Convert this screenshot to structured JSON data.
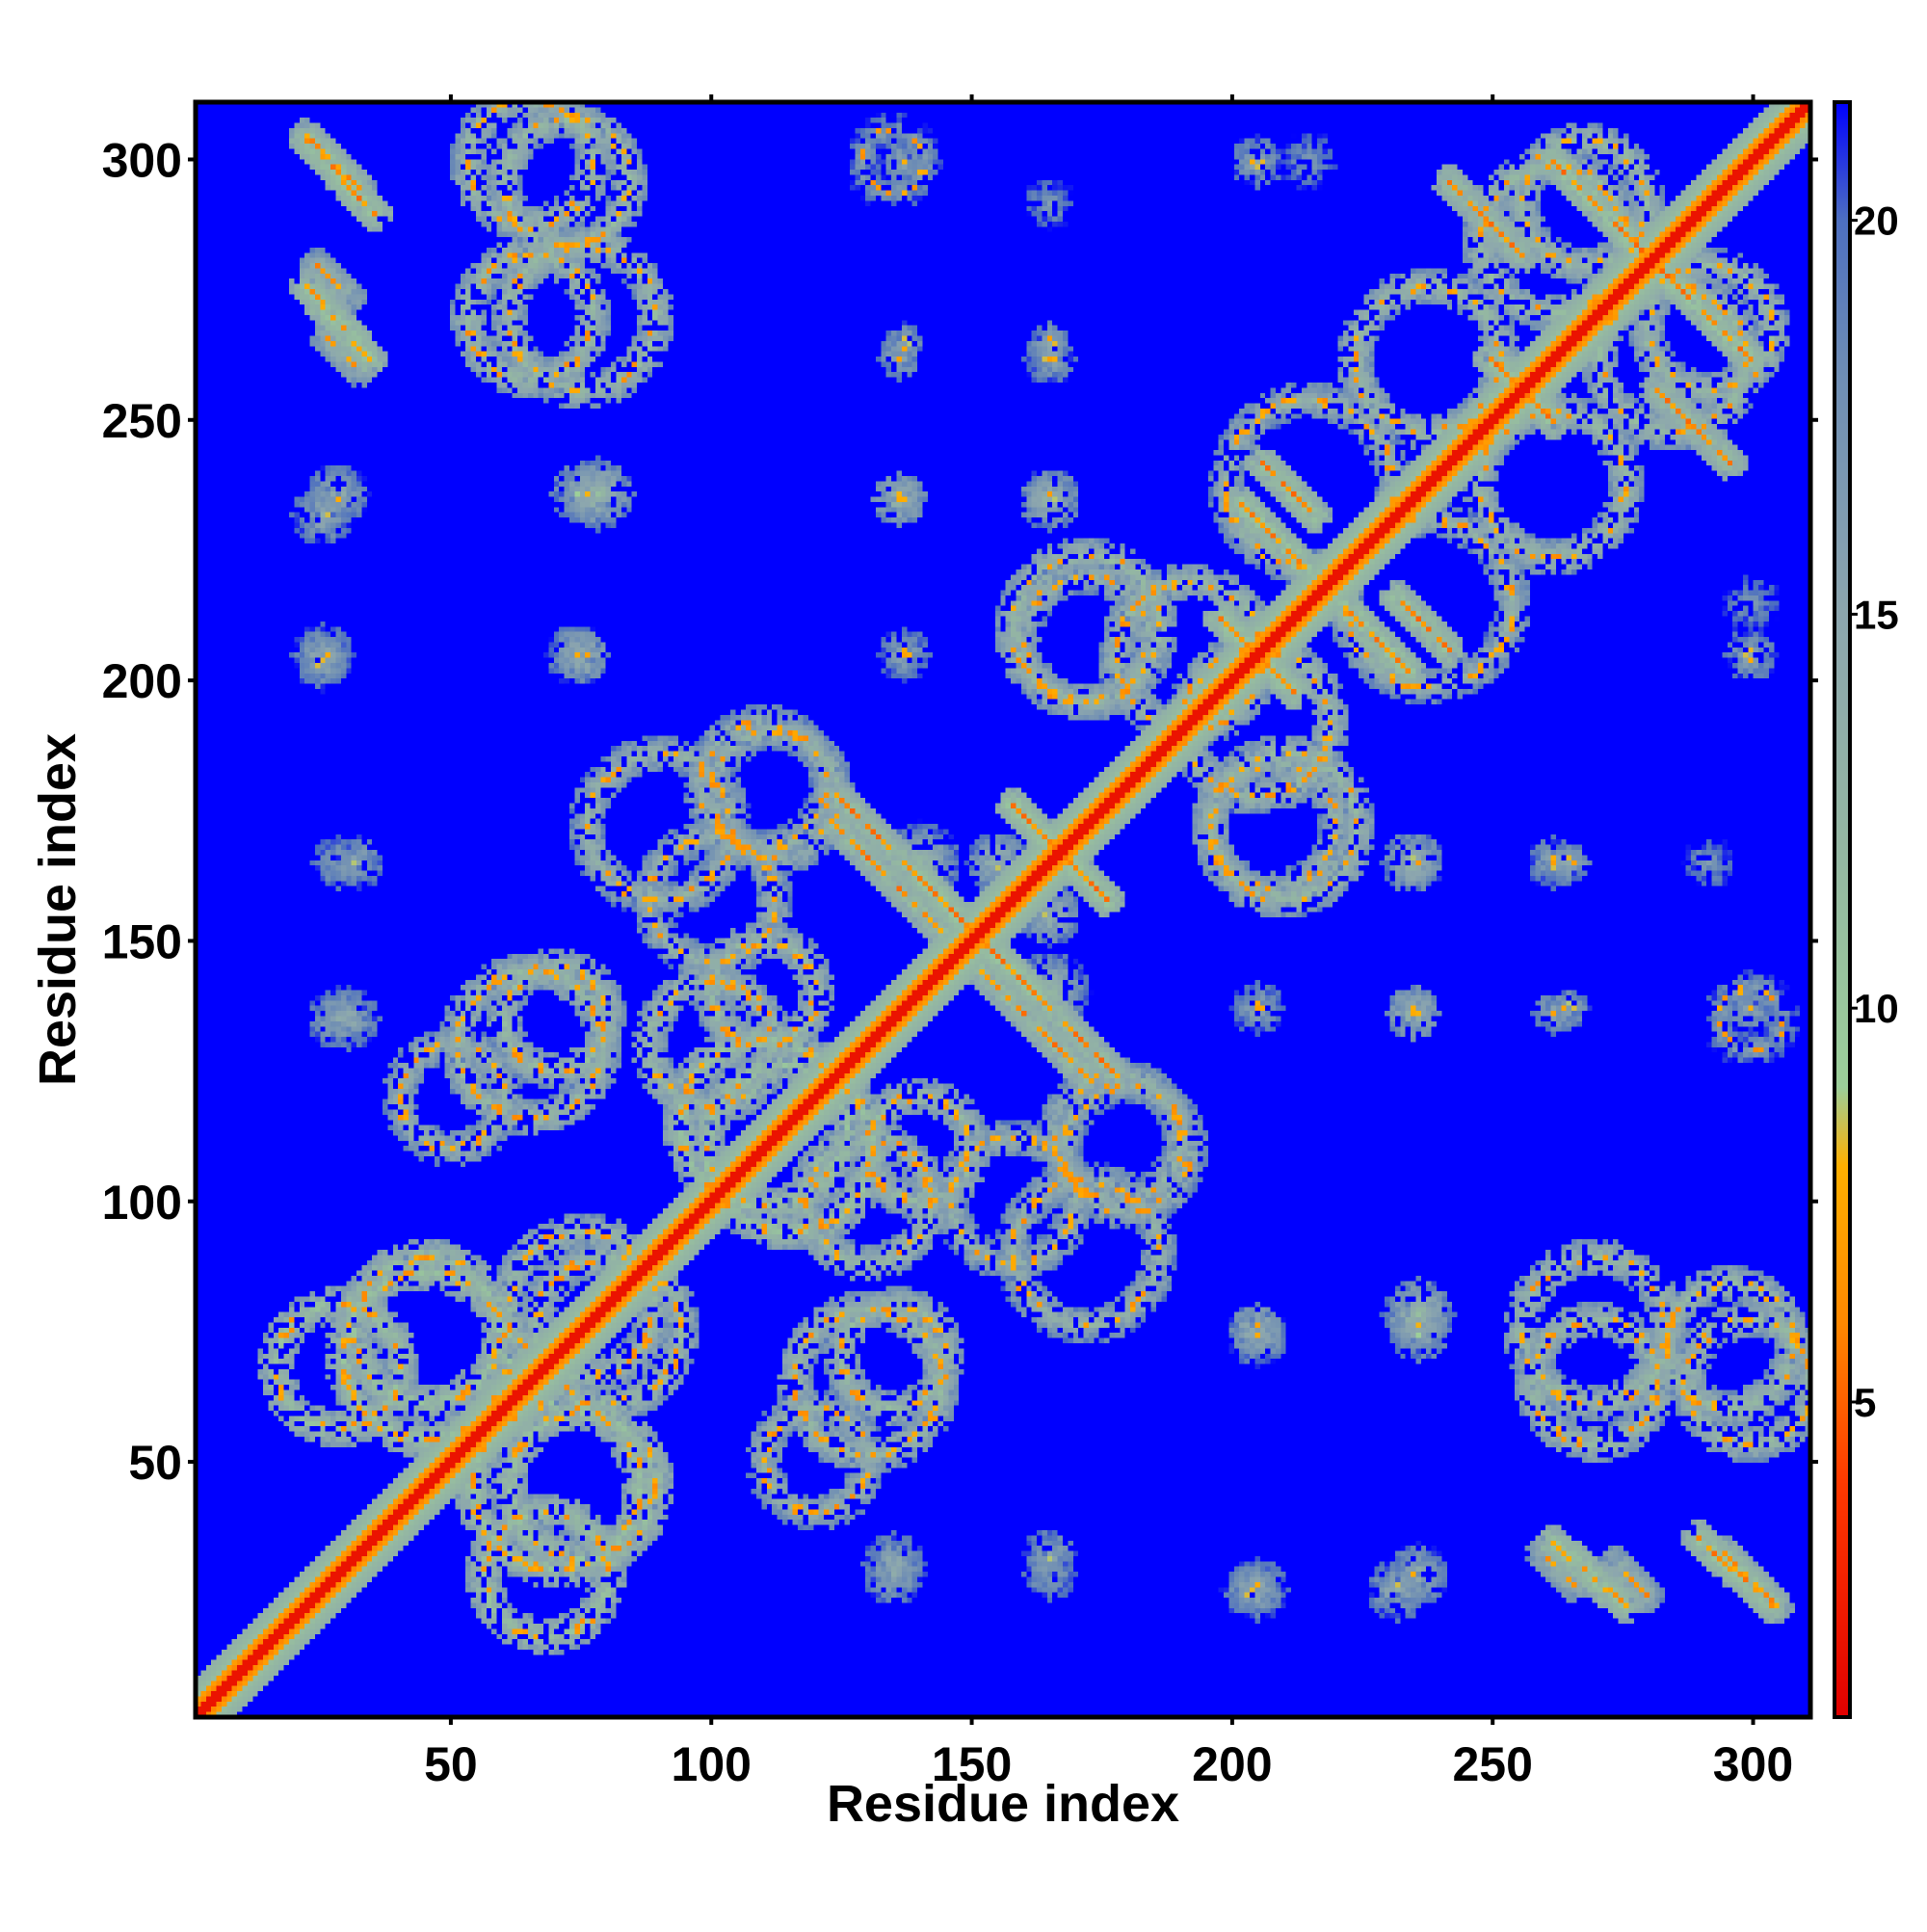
{
  "chart_data": {
    "type": "heatmap",
    "subtype": "residue-residue distance map",
    "xlabel": "Residue index",
    "ylabel": "Residue index",
    "n_residues": 311,
    "xlim": [
      1,
      311
    ],
    "ylim": [
      1,
      311
    ],
    "x_ticks": [
      50,
      100,
      150,
      200,
      250,
      300
    ],
    "y_ticks": [
      50,
      100,
      150,
      200,
      250,
      300
    ],
    "colorbar": {
      "range": [
        1,
        21.5
      ],
      "ticks": [
        5,
        10,
        15,
        20
      ],
      "colors": [
        {
          "value": 1,
          "color": "#e10000"
        },
        {
          "value": 4,
          "color": "#ff3a00"
        },
        {
          "value": 6,
          "color": "#ff8800"
        },
        {
          "value": 8,
          "color": "#ffb000"
        },
        {
          "value": 9,
          "color": "#9ccf9a"
        },
        {
          "value": 12,
          "color": "#94b7a2"
        },
        {
          "value": 15,
          "color": "#8ca6ae"
        },
        {
          "value": 18,
          "color": "#6f8eb4"
        },
        {
          "value": 20,
          "color": "#4d6fc0"
        },
        {
          "value": 21.5,
          "color": "#0000ff"
        }
      ]
    },
    "background_color": "#0000ff",
    "diagonal_band": {
      "from": 1,
      "to": 311,
      "core_distance": 2,
      "shoulder_distance": 9
    },
    "contact_features": [
      {
        "kind": "antiparallel",
        "i": [
          22,
          32
        ],
        "j": [
          305,
          295
        ],
        "distance": 10
      },
      {
        "kind": "antiparallel",
        "i": [
          24,
          30
        ],
        "j": [
          280,
          274
        ],
        "distance": 12
      },
      {
        "kind": "antiparallel",
        "i": [
          26,
          32
        ],
        "j": [
          266,
          260
        ],
        "distance": 12
      },
      {
        "kind": "blob",
        "x": 25,
        "y": 232,
        "radius": 6,
        "distance": 13
      },
      {
        "kind": "blob",
        "x": 25,
        "y": 203,
        "radius": 5,
        "distance": 14
      },
      {
        "kind": "ring",
        "x": 72,
        "y": 296,
        "radius": 12,
        "distance": 11
      },
      {
        "kind": "ring",
        "x": 75,
        "y": 270,
        "radius": 14,
        "distance": 11
      },
      {
        "kind": "blob",
        "x": 78,
        "y": 236,
        "radius": 7,
        "distance": 11
      },
      {
        "kind": "blob",
        "x": 74,
        "y": 205,
        "radius": 6,
        "distance": 13
      },
      {
        "kind": "ring",
        "x": 135,
        "y": 300,
        "radius": 6,
        "distance": 15
      },
      {
        "kind": "blob",
        "x": 136,
        "y": 262,
        "radius": 4,
        "distance": 14
      },
      {
        "kind": "blob",
        "x": 136,
        "y": 235,
        "radius": 5,
        "distance": 12
      },
      {
        "kind": "blob",
        "x": 165,
        "y": 292,
        "radius": 5,
        "distance": 15
      },
      {
        "kind": "blob",
        "x": 165,
        "y": 262,
        "radius": 5,
        "distance": 14
      },
      {
        "kind": "blob",
        "x": 165,
        "y": 235,
        "radius": 6,
        "distance": 12
      },
      {
        "kind": "blob",
        "x": 215,
        "y": 300,
        "radius": 6,
        "distance": 15
      },
      {
        "kind": "ring",
        "x": 262,
        "y": 285,
        "radius": 14,
        "distance": 11
      },
      {
        "kind": "ring",
        "x": 292,
        "y": 268,
        "radius": 12,
        "distance": 11
      },
      {
        "kind": "antiparallel",
        "i": [
          262,
          288
        ],
        "j": [
          300,
          274
        ],
        "distance": 9
      },
      {
        "kind": "antiparallel",
        "i": [
          242,
          256
        ],
        "j": [
          296,
          282
        ],
        "distance": 10
      },
      {
        "kind": "antiparallel",
        "i": [
          250,
          260
        ],
        "j": [
          262,
          252
        ],
        "distance": 9
      },
      {
        "kind": "antiparallel",
        "i": [
          206,
          216
        ],
        "j": [
          242,
          232
        ],
        "distance": 9
      },
      {
        "kind": "antiparallel",
        "i": [
          222,
          234
        ],
        "j": [
          214,
          202
        ],
        "distance": 9
      },
      {
        "kind": "antiparallel",
        "i": [
          198,
          208
        ],
        "j": [
          212,
          202
        ],
        "distance": 9
      },
      {
        "kind": "antiparallel",
        "i": [
          158,
          176
        ],
        "j": [
          176,
          158
        ],
        "distance": 9
      },
      {
        "kind": "antiparallel",
        "i": [
          140,
          162
        ],
        "j": [
          162,
          140
        ],
        "distance": 9
      },
      {
        "kind": "antiparallel",
        "i": [
          124,
          144
        ],
        "j": [
          172,
          152
        ],
        "distance": 10
      },
      {
        "kind": "antiparallel",
        "i": [
          162,
          178
        ],
        "j": [
          140,
          124
        ],
        "distance": 10
      },
      {
        "kind": "ring",
        "x": 192,
        "y": 205,
        "radius": 14,
        "distance": 11
      },
      {
        "kind": "ring",
        "x": 210,
        "y": 172,
        "radius": 14,
        "distance": 11
      },
      {
        "kind": "ring",
        "x": 238,
        "y": 215,
        "radius": 16,
        "distance": 12
      },
      {
        "kind": "ring",
        "x": 262,
        "y": 238,
        "radius": 14,
        "distance": 11
      },
      {
        "kind": "ring",
        "x": 172,
        "y": 208,
        "radius": 12,
        "distance": 12
      },
      {
        "kind": "blob",
        "x": 300,
        "y": 205,
        "radius": 5,
        "distance": 14
      },
      {
        "kind": "blob",
        "x": 300,
        "y": 137,
        "radius": 4,
        "distance": 14
      },
      {
        "kind": "blob",
        "x": 236,
        "y": 137,
        "radius": 4,
        "distance": 13
      },
      {
        "kind": "blob",
        "x": 265,
        "y": 137,
        "radius": 4,
        "distance": 14
      },
      {
        "kind": "blob",
        "x": 205,
        "y": 137,
        "radius": 5,
        "distance": 14
      },
      {
        "kind": "blob",
        "x": 265,
        "y": 165,
        "radius": 4,
        "distance": 14
      },
      {
        "kind": "ring",
        "x": 112,
        "y": 178,
        "radius": 12,
        "distance": 12
      },
      {
        "kind": "ring",
        "x": 100,
        "y": 158,
        "radius": 12,
        "distance": 12
      },
      {
        "kind": "ring",
        "x": 65,
        "y": 130,
        "radius": 14,
        "distance": 11
      },
      {
        "kind": "ring",
        "x": 110,
        "y": 140,
        "radius": 10,
        "distance": 11
      },
      {
        "kind": "blob",
        "x": 30,
        "y": 135,
        "radius": 6,
        "distance": 13
      },
      {
        "kind": "blob",
        "x": 32,
        "y": 165,
        "radius": 5,
        "distance": 14
      },
      {
        "kind": "ring",
        "x": 110,
        "y": 115,
        "radius": 16,
        "distance": 10
      },
      {
        "kind": "ring",
        "x": 130,
        "y": 100,
        "radius": 12,
        "distance": 11
      },
      {
        "kind": "ring",
        "x": 75,
        "y": 80,
        "radius": 14,
        "distance": 11
      },
      {
        "kind": "ring",
        "x": 45,
        "y": 75,
        "radius": 14,
        "distance": 10
      },
      {
        "kind": "ring",
        "x": 70,
        "y": 45,
        "radius": 16,
        "distance": 10
      },
      {
        "kind": "ring",
        "x": 28,
        "y": 68,
        "radius": 12,
        "distance": 10
      },
      {
        "kind": "ring",
        "x": 172,
        "y": 90,
        "radius": 14,
        "distance": 12
      },
      {
        "kind": "ring",
        "x": 180,
        "y": 110,
        "radius": 12,
        "distance": 12
      },
      {
        "kind": "ring",
        "x": 135,
        "y": 70,
        "radius": 10,
        "distance": 11
      },
      {
        "kind": "ring",
        "x": 120,
        "y": 50,
        "radius": 10,
        "distance": 12
      },
      {
        "kind": "blob",
        "x": 135,
        "y": 28,
        "radius": 6,
        "distance": 13
      },
      {
        "kind": "blob",
        "x": 165,
        "y": 28,
        "radius": 5,
        "distance": 14
      },
      {
        "kind": "blob",
        "x": 205,
        "y": 25,
        "radius": 6,
        "distance": 13
      },
      {
        "kind": "blob",
        "x": 205,
        "y": 75,
        "radius": 5,
        "distance": 12
      },
      {
        "kind": "blob",
        "x": 236,
        "y": 75,
        "radius": 6,
        "distance": 12
      },
      {
        "kind": "ring",
        "x": 270,
        "y": 65,
        "radius": 12,
        "distance": 11
      },
      {
        "kind": "ring",
        "x": 300,
        "y": 65,
        "radius": 12,
        "distance": 11
      },
      {
        "kind": "antiparallel",
        "i": [
          262,
          276
        ],
        "j": [
          34,
          22
        ],
        "distance": 9
      },
      {
        "kind": "antiparallel",
        "i": [
          290,
          304
        ],
        "j": [
          35,
          22
        ],
        "distance": 9
      },
      {
        "kind": "blob",
        "x": 236,
        "y": 28,
        "radius": 6,
        "distance": 13
      },
      {
        "kind": "blob",
        "x": 165,
        "y": 155,
        "radius": 6,
        "distance": 12
      },
      {
        "kind": "blob",
        "x": 140,
        "y": 165,
        "radius": 8,
        "distance": 11
      }
    ]
  }
}
